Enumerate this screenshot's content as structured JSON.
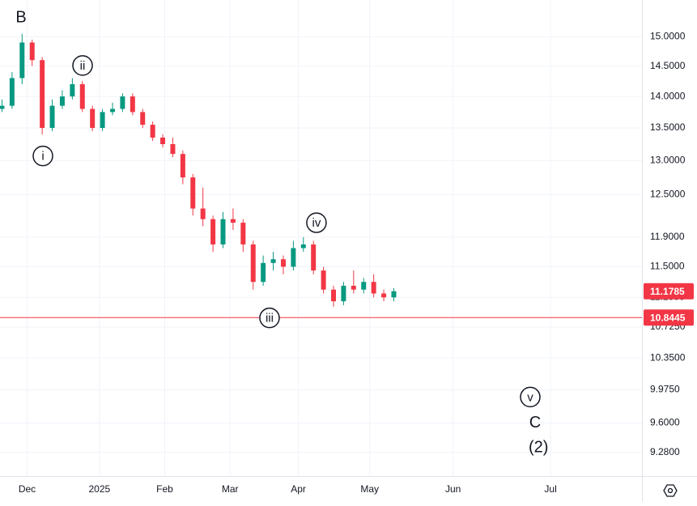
{
  "chart_data": {
    "type": "candlestick",
    "log_scale": true,
    "grid": true,
    "up_color": "#089981",
    "down_color": "#f23645",
    "open": [
      13.8,
      13.85,
      14.3,
      14.9,
      14.6,
      13.5,
      13.85,
      14.0,
      14.2,
      13.8,
      13.5,
      13.75,
      13.8,
      14.0,
      13.75,
      13.55,
      13.35,
      13.25,
      13.1,
      12.75,
      12.3,
      12.15,
      11.8,
      12.15,
      12.1,
      11.8,
      11.3,
      11.55,
      11.6,
      11.5,
      11.75,
      11.8,
      11.45,
      11.2,
      11.05,
      11.25,
      11.2,
      11.3,
      11.15,
      11.1
    ],
    "high": [
      13.95,
      14.4,
      15.05,
      14.95,
      14.65,
      13.95,
      14.1,
      14.3,
      14.25,
      13.85,
      13.8,
      13.9,
      14.05,
      14.05,
      13.8,
      13.6,
      13.4,
      13.35,
      13.15,
      12.8,
      12.6,
      12.2,
      12.25,
      12.3,
      12.15,
      11.85,
      11.65,
      11.7,
      11.65,
      11.85,
      11.9,
      11.85,
      11.5,
      11.25,
      11.3,
      11.45,
      11.35,
      11.4,
      11.2,
      11.22
    ],
    "low": [
      13.75,
      13.8,
      14.2,
      14.5,
      13.4,
      13.45,
      13.8,
      13.95,
      13.75,
      13.45,
      13.45,
      13.7,
      13.75,
      13.7,
      13.5,
      13.3,
      13.2,
      13.05,
      12.65,
      12.2,
      12.05,
      11.7,
      11.75,
      12.0,
      11.7,
      11.2,
      11.25,
      11.45,
      11.4,
      11.45,
      11.7,
      11.4,
      11.15,
      10.98,
      11.0,
      11.15,
      11.15,
      11.1,
      11.05,
      11.05
    ],
    "close": [
      13.85,
      14.3,
      14.9,
      14.6,
      13.5,
      13.85,
      14.0,
      14.2,
      13.8,
      13.5,
      13.75,
      13.8,
      14.0,
      13.75,
      13.55,
      13.35,
      13.25,
      13.1,
      12.75,
      12.3,
      12.15,
      11.8,
      12.15,
      12.1,
      11.8,
      11.3,
      11.55,
      11.6,
      11.5,
      11.75,
      11.8,
      11.45,
      11.2,
      11.05,
      11.25,
      11.2,
      11.3,
      11.15,
      11.1,
      11.1785
    ],
    "xlim": [
      -0.2,
      63.7
    ],
    "xticks": [
      {
        "value": 2.5,
        "label": "Dec"
      },
      {
        "value": 9.7,
        "label": "2025"
      },
      {
        "value": 16.2,
        "label": "Feb"
      },
      {
        "value": 22.7,
        "label": "Mar"
      },
      {
        "value": 29.5,
        "label": "Apr"
      },
      {
        "value": 36.6,
        "label": "May"
      },
      {
        "value": 44.9,
        "label": "Jun"
      },
      {
        "value": 54.6,
        "label": "Jul"
      }
    ],
    "ylim": [
      9.03,
      15.65
    ],
    "yticks": [
      {
        "value": 15,
        "label": "15.0000"
      },
      {
        "value": 14.5,
        "label": "14.5000"
      },
      {
        "value": 14,
        "label": "14.0000"
      },
      {
        "value": 13.5,
        "label": "13.5000"
      },
      {
        "value": 13,
        "label": "13.0000"
      },
      {
        "value": 12.5,
        "label": "12.5000"
      },
      {
        "value": 11.9,
        "label": "11.9000"
      },
      {
        "value": 11.5,
        "label": "11.5000"
      },
      {
        "value": 11.1,
        "label": "11.1000"
      },
      {
        "value": 10.725,
        "label": "10.7250"
      },
      {
        "value": 10.35,
        "label": "10.3500"
      },
      {
        "value": 9.975,
        "label": "9.9750"
      },
      {
        "value": 9.6,
        "label": "9.6000"
      },
      {
        "value": 9.28,
        "label": "9.2800"
      }
    ],
    "price_line": {
      "value": 10.8445,
      "color": "#f23645"
    },
    "last_price_color": "#f23645",
    "annotations": [
      {
        "text": "B",
        "x": 1.9,
        "y": 15.33,
        "circled": false
      },
      {
        "text": "i",
        "x": 4.07,
        "y": 13.07,
        "circled": true
      },
      {
        "text": "ii",
        "x": 8.02,
        "y": 14.51,
        "circled": true
      },
      {
        "text": "iii",
        "x": 26.63,
        "y": 10.84,
        "circled": true
      },
      {
        "text": "iv",
        "x": 31.3,
        "y": 12.1,
        "circled": true
      },
      {
        "text": "v",
        "x": 52.58,
        "y": 9.893,
        "circled": true
      },
      {
        "text": "C",
        "x": 53.06,
        "y": 9.6,
        "circled": false
      },
      {
        "text": "(2)",
        "x": 53.4,
        "y": 9.33,
        "circled": false
      }
    ]
  }
}
